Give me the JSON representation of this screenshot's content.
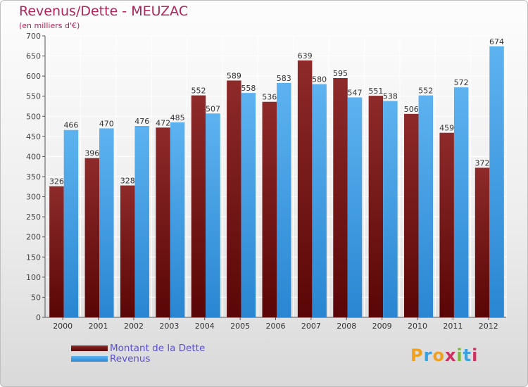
{
  "title": "Revenus/Dette - MEUZAC",
  "subtitle": "(en milliers d'€)",
  "brand": "Proxiti",
  "colors": {
    "title": "#b0245a",
    "dette": "#6e1010",
    "revenus": "#4aa3e8",
    "legend_text": "#5a4fd6"
  },
  "chart_data": {
    "type": "bar",
    "categories": [
      "2000",
      "2001",
      "2002",
      "2003",
      "2004",
      "2005",
      "2006",
      "2007",
      "2008",
      "2009",
      "2010",
      "2011",
      "2012"
    ],
    "series": [
      {
        "name": "Montant de la Dette",
        "values": [
          326,
          396,
          328,
          472,
          552,
          589,
          536,
          639,
          595,
          551,
          506,
          459,
          372
        ]
      },
      {
        "name": "Revenus",
        "values": [
          466,
          470,
          476,
          485,
          507,
          558,
          583,
          580,
          547,
          538,
          552,
          572,
          674
        ]
      }
    ],
    "ylim": [
      0,
      700
    ],
    "yticks": [
      0,
      50,
      100,
      150,
      200,
      250,
      300,
      350,
      400,
      450,
      500,
      550,
      600,
      650,
      700
    ],
    "grid": true,
    "legend": "bottom-left"
  },
  "legend": {
    "dette_label": "Montant de la Dette",
    "revenus_label": "Revenus"
  }
}
